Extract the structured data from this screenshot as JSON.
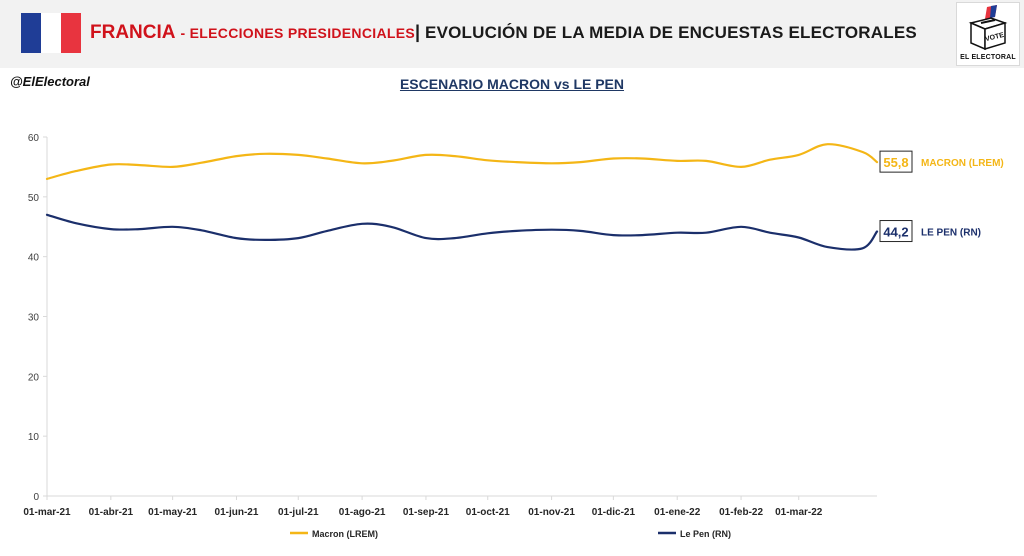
{
  "header": {
    "country": "FRANCIA",
    "subtitle": "- ELECCIONES PRESIDENCIALES",
    "separator": "|",
    "title": "EVOLUCIÓN DE LA MEDIA DE ENCUESTAS ELECTORALES"
  },
  "logo": {
    "text": "EL ELECTORAL",
    "ballot_text": "VOTE"
  },
  "handle": "@ElElectoral",
  "scenario": "ESCENARIO MACRON vs LE PEN",
  "colors": {
    "macron": "#f4b616",
    "lepen": "#1b2f6b",
    "axis": "#d9d9d9"
  },
  "chart_data": {
    "type": "line",
    "title": "ESCENARIO MACRON vs LE PEN",
    "ylim": [
      0,
      60
    ],
    "yticks": [
      0,
      10,
      20,
      30,
      40,
      50,
      60
    ],
    "grid": false,
    "legend_position": "bottom",
    "xticks": [
      "01-mar-21",
      "01-abr-21",
      "01-may-21",
      "01-jun-21",
      "01-jul-21",
      "01-ago-21",
      "01-sep-21",
      "01-oct-21",
      "01-nov-21",
      "01-dic-21",
      "01-ene-22",
      "01-feb-22",
      "01-mar-22"
    ],
    "x": [
      "01-mar-21",
      "15-mar-21",
      "01-abr-21",
      "15-abr-21",
      "01-may-21",
      "15-may-21",
      "01-jun-21",
      "15-jun-21",
      "01-jul-21",
      "15-jul-21",
      "01-ago-21",
      "15-ago-21",
      "01-sep-21",
      "15-sep-21",
      "01-oct-21",
      "15-oct-21",
      "01-nov-21",
      "15-nov-21",
      "01-dic-21",
      "15-dic-21",
      "01-ene-22",
      "15-ene-22",
      "01-feb-22",
      "15-feb-22",
      "01-mar-22",
      "15-mar-22",
      "01-abr-22",
      "08-abr-22"
    ],
    "series": [
      {
        "name": "Macron (LREM)",
        "end_label": "MACRON (LREM)",
        "final_value": "55,8",
        "color": "#f4b616",
        "values": [
          53.0,
          54.3,
          55.4,
          55.3,
          55.0,
          55.7,
          56.8,
          57.2,
          57.0,
          56.4,
          55.6,
          56.0,
          57.0,
          56.8,
          56.1,
          55.8,
          55.6,
          55.8,
          56.4,
          56.4,
          56.0,
          56.0,
          55.0,
          56.2,
          57.0,
          58.8,
          57.5,
          55.8
        ]
      },
      {
        "name": "Le Pen (RN)",
        "end_label": "LE PEN (RN)",
        "final_value": "44,2",
        "color": "#1b2f6b",
        "values": [
          47.0,
          45.6,
          44.6,
          44.6,
          45.0,
          44.4,
          43.1,
          42.8,
          43.1,
          44.3,
          45.5,
          45.0,
          43.1,
          43.1,
          43.9,
          44.3,
          44.5,
          44.3,
          43.6,
          43.6,
          44.0,
          44.0,
          45.0,
          44.0,
          43.2,
          41.6,
          41.4,
          44.2
        ]
      }
    ]
  }
}
